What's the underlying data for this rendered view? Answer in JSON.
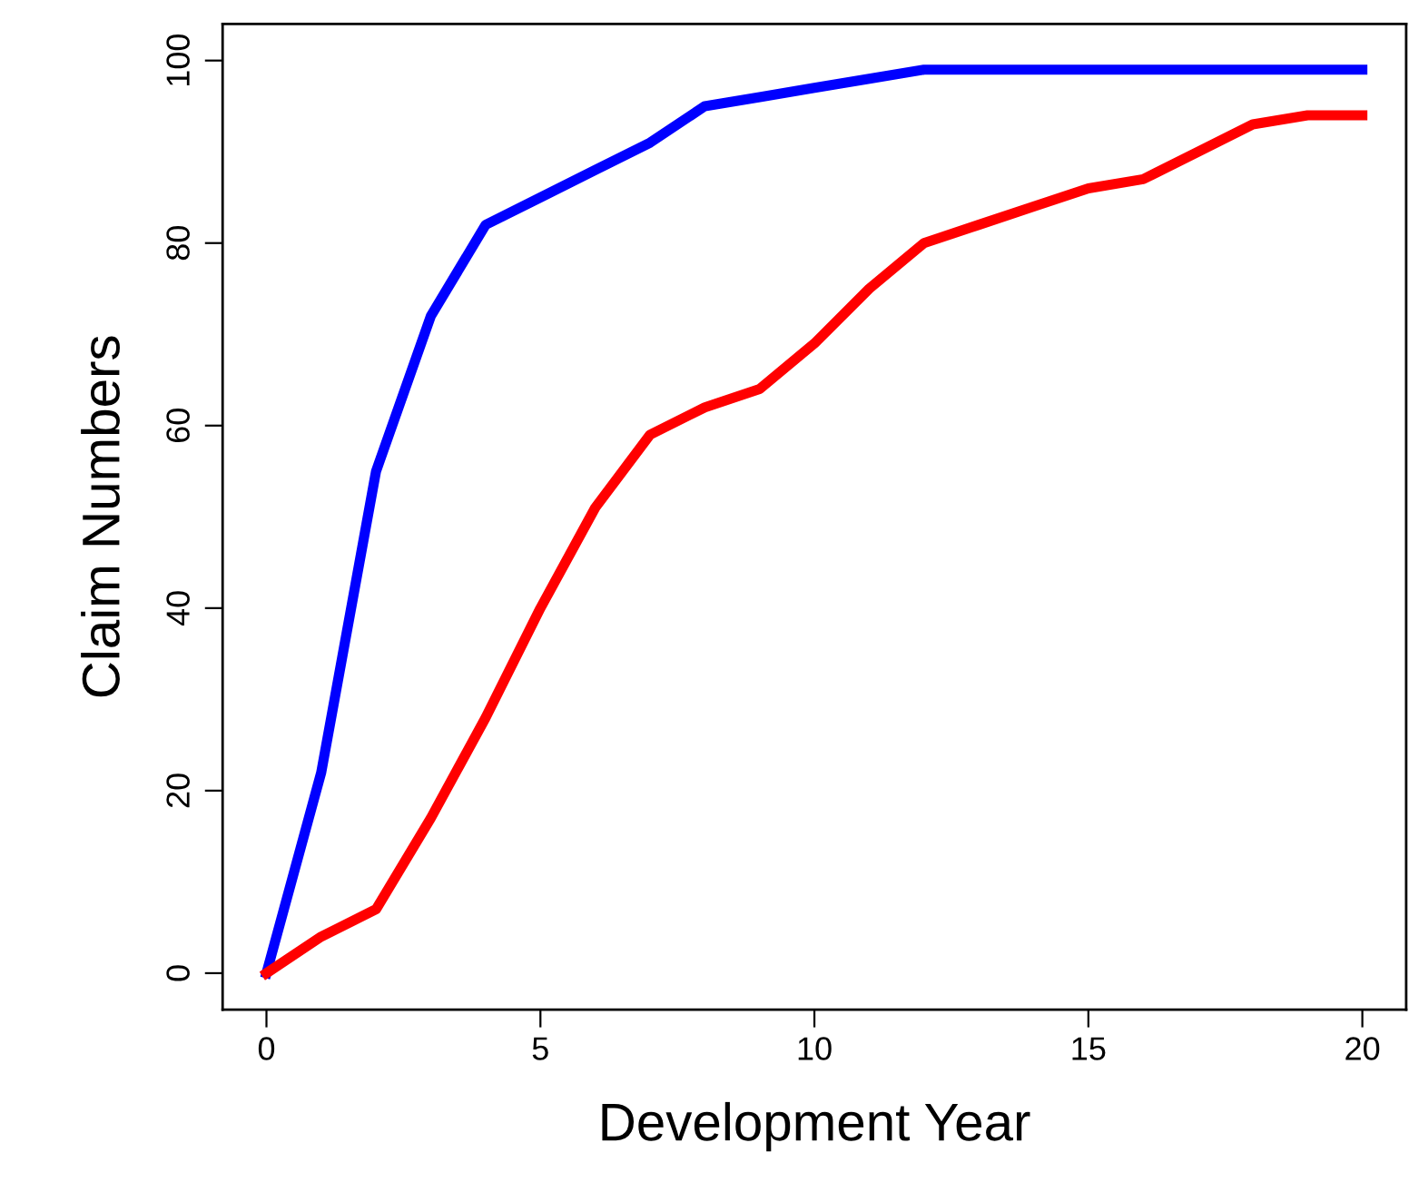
{
  "chart_data": {
    "type": "line",
    "xlabel": "Development Year",
    "ylabel": "Claim Numbers",
    "x": [
      0,
      1,
      2,
      3,
      4,
      5,
      6,
      7,
      8,
      9,
      10,
      11,
      12,
      13,
      14,
      15,
      16,
      17,
      18,
      19,
      20
    ],
    "series": [
      {
        "color": "#0000ff",
        "values": [
          0,
          22,
          55,
          72,
          82,
          85,
          88,
          91,
          95,
          96,
          97,
          98,
          99,
          99,
          99,
          99,
          99,
          99,
          99,
          99,
          99
        ]
      },
      {
        "color": "#ff0000",
        "values": [
          0,
          4,
          7,
          17,
          28,
          40,
          51,
          59,
          62,
          64,
          69,
          75,
          80,
          82,
          84,
          86,
          87,
          90,
          93,
          94,
          94
        ]
      }
    ],
    "xlim": [
      -0.8,
      20.8
    ],
    "ylim": [
      -4,
      104
    ],
    "xticks": [
      0,
      5,
      10,
      15,
      20
    ],
    "yticks": [
      0,
      20,
      40,
      60,
      80,
      100
    ],
    "marker": "none",
    "line_style": "solid"
  }
}
